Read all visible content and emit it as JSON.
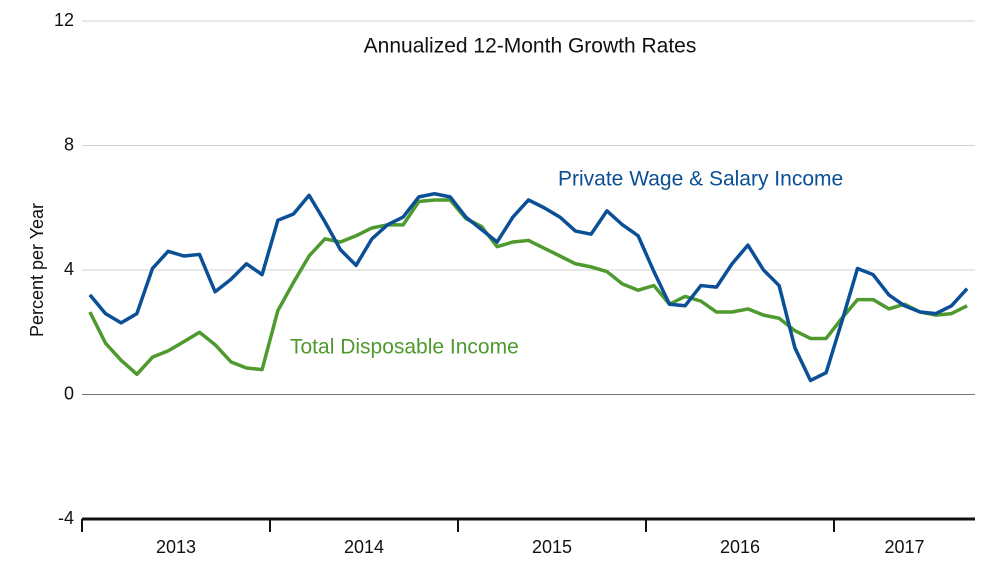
{
  "chart_data": {
    "type": "line",
    "title": "Annualized 12-Month Growth Rates",
    "y_label": "Percent per Year",
    "xlim": [
      2013,
      2017.75
    ],
    "xticks": [
      2013,
      2014,
      2015,
      2016,
      2017
    ],
    "year_labels": [
      "2013",
      "2014",
      "2015",
      "2016",
      "2017"
    ],
    "ylim": [
      -4,
      12
    ],
    "yticks": [
      -4,
      0,
      4,
      8,
      12
    ],
    "grid": true,
    "x": [
      2013.042,
      2013.125,
      2013.208,
      2013.292,
      2013.375,
      2013.458,
      2013.542,
      2013.625,
      2013.708,
      2013.792,
      2013.875,
      2013.958,
      2014.042,
      2014.125,
      2014.208,
      2014.292,
      2014.375,
      2014.458,
      2014.542,
      2014.625,
      2014.708,
      2014.792,
      2014.875,
      2014.958,
      2015.042,
      2015.125,
      2015.208,
      2015.292,
      2015.375,
      2015.458,
      2015.542,
      2015.625,
      2015.708,
      2015.792,
      2015.875,
      2015.958,
      2016.042,
      2016.125,
      2016.208,
      2016.292,
      2016.375,
      2016.458,
      2016.542,
      2016.625,
      2016.708,
      2016.792,
      2016.875,
      2016.958,
      2017.042,
      2017.125,
      2017.208,
      2017.292,
      2017.375,
      2017.458,
      2017.542,
      2017.625,
      2017.708
    ],
    "series": [
      {
        "name": "Private Wage & Salary Income",
        "color": "#0b4f96",
        "values": [
          3.2,
          2.6,
          2.3,
          2.6,
          4.05,
          4.6,
          4.45,
          4.5,
          3.3,
          3.7,
          4.2,
          3.85,
          5.6,
          5.8,
          6.4,
          5.55,
          4.65,
          4.15,
          5.0,
          5.45,
          5.7,
          6.35,
          6.45,
          6.35,
          5.7,
          5.3,
          4.9,
          5.7,
          6.25,
          6.0,
          5.7,
          5.25,
          5.15,
          5.9,
          5.45,
          5.1,
          3.95,
          2.9,
          2.85,
          3.5,
          3.45,
          4.2,
          4.8,
          4.0,
          3.5,
          1.5,
          0.45,
          0.7,
          2.35,
          4.05,
          3.85,
          3.2,
          2.85,
          2.65,
          2.6,
          2.85,
          3.4
        ]
      },
      {
        "name": "Total Disposable Income",
        "color": "#4e9a2e",
        "values": [
          2.65,
          1.65,
          1.1,
          0.65,
          1.2,
          1.4,
          1.7,
          2.0,
          1.6,
          1.05,
          0.85,
          0.8,
          2.7,
          3.6,
          4.45,
          5.0,
          4.9,
          5.1,
          5.35,
          5.45,
          5.45,
          6.2,
          6.25,
          6.25,
          5.65,
          5.4,
          4.75,
          4.9,
          4.95,
          4.7,
          4.45,
          4.2,
          4.1,
          3.95,
          3.55,
          3.35,
          3.5,
          2.9,
          3.15,
          3.0,
          2.65,
          2.65,
          2.75,
          2.55,
          2.45,
          2.05,
          1.8,
          1.8,
          2.45,
          3.05,
          3.05,
          2.75,
          2.9,
          2.65,
          2.55,
          2.6,
          2.85
        ]
      }
    ]
  }
}
